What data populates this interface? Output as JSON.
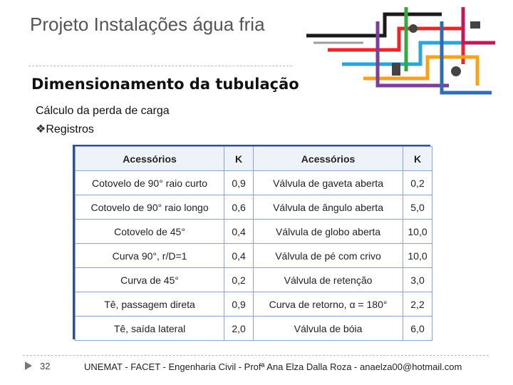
{
  "header": {
    "title": "Projeto Instalações água fria",
    "subtitle": "Dimensionamento da tubulação"
  },
  "bullets": [
    "Cálculo da perda de carga",
    "Registros"
  ],
  "table": {
    "columns": [
      "Acessórios",
      "K",
      "Acessórios",
      "K"
    ],
    "rows": [
      [
        "Cotovelo de 90° raio curto",
        "0,9",
        "Válvula de gaveta aberta",
        "0,2"
      ],
      [
        "Cotovelo de 90° raio longo",
        "0,6",
        "Válvula de ângulo aberta",
        "5,0"
      ],
      [
        "Cotovelo de 45°",
        "0,4",
        "Válvula de globo aberta",
        "10,0"
      ],
      [
        "Curva 90°, r/D=1",
        "0,4",
        "Válvula de pé com crivo",
        "10,0"
      ],
      [
        "Curva de 45°",
        "0,2",
        "Válvula de retenção",
        "3,0"
      ],
      [
        "Tê, passagem direta",
        "0,9",
        "Curva de retorno, α = 180°",
        "2,2"
      ],
      [
        "Tê, saída lateral",
        "2,0",
        "Válvula de bóia",
        "6,0"
      ]
    ]
  },
  "footer": {
    "page": "32",
    "text": "UNEMAT - FACET - Engenharia Civil - Profª Ana Elza Dalla Roza - anaelza00@hotmail.com"
  }
}
